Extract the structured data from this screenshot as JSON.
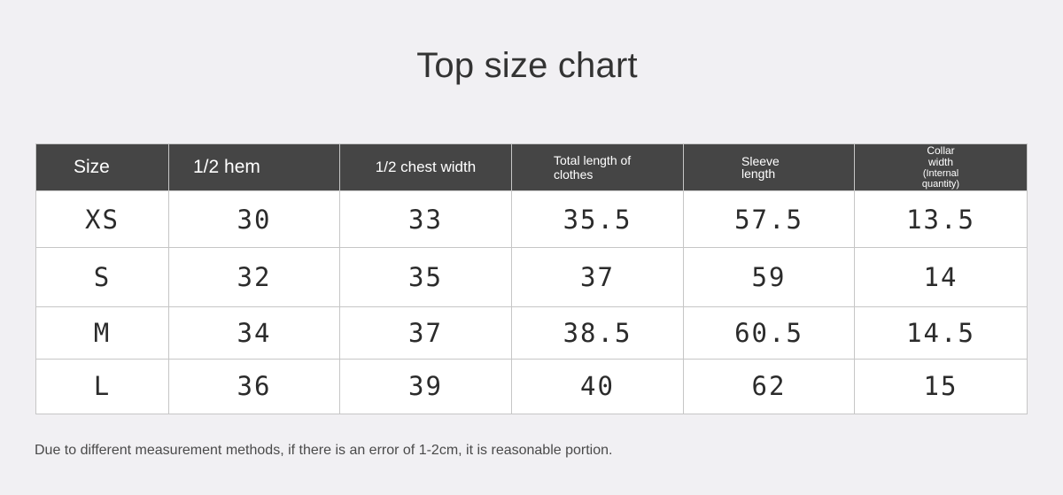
{
  "title": "Top size chart",
  "table": {
    "headers": {
      "size": "Size",
      "hem": "1/2 hem",
      "chest": "1/2 chest width",
      "length_1": "Total length of",
      "length_2": "clothes",
      "sleeve_1": "Sleeve",
      "sleeve_2": "length",
      "collar_1": "Collar",
      "collar_2": "width",
      "collar_3": "(Internal",
      "collar_4": "quantity)"
    },
    "rows": [
      [
        "XS",
        "30",
        "33",
        "35.5",
        "57.5",
        "13.5"
      ],
      [
        "S",
        "32",
        "35",
        "37",
        "59",
        "14"
      ],
      [
        "M",
        "34",
        "37",
        "38.5",
        "60.5",
        "14.5"
      ],
      [
        "L",
        "36",
        "39",
        "40",
        "62",
        "15"
      ]
    ]
  },
  "note": "Due to different measurement methods, if there is an error of 1-2cm, it is reasonable portion."
}
